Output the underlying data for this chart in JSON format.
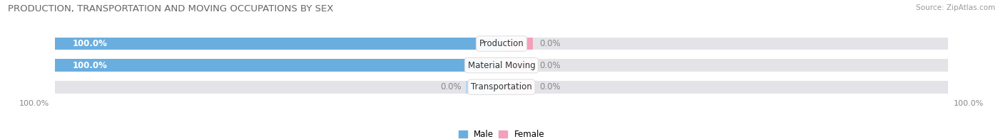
{
  "title": "PRODUCTION, TRANSPORTATION AND MOVING OCCUPATIONS BY SEX",
  "source": "Source: ZipAtlas.com",
  "categories": [
    "Production",
    "Material Moving",
    "Transportation"
  ],
  "male_values": [
    100.0,
    100.0,
    0.0
  ],
  "female_values": [
    0.0,
    0.0,
    0.0
  ],
  "male_color": "#6aaee0",
  "female_color": "#f4a0ba",
  "male_color_light": "#b8d6f0",
  "bar_bg_color": "#e4e4e8",
  "bar_height": 0.58,
  "title_fontsize": 9.5,
  "label_fontsize": 8.5,
  "cat_fontsize": 8.5,
  "tick_fontsize": 8,
  "source_fontsize": 7.5,
  "fig_bg_color": "#ffffff",
  "ax_bg_color": "#f5f5f5",
  "x_left_label": "100.0%",
  "x_right_label": "100.0%",
  "xlim_left": -110,
  "xlim_right": 110
}
